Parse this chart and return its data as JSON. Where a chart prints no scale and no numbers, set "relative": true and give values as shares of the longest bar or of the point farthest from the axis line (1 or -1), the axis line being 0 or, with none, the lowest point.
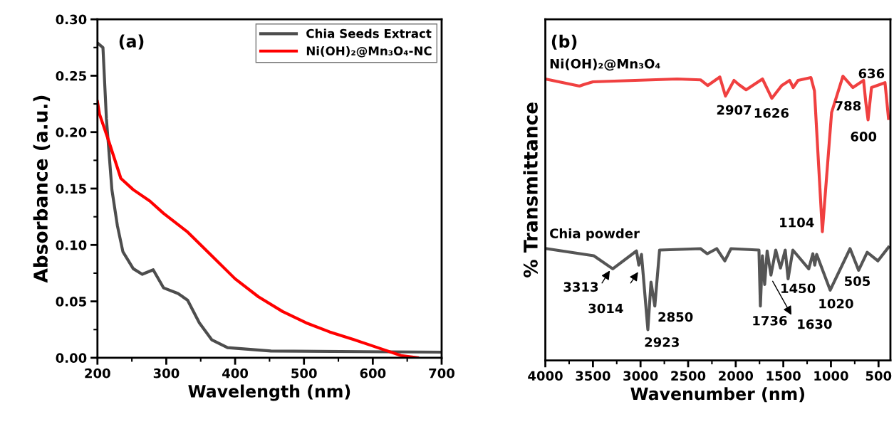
{
  "chart_data": [
    {
      "type": "line",
      "title": "(a)",
      "xlabel": "Wavelength (nm)",
      "ylabel": "Absorbance (a.u.)",
      "xlim": [
        200,
        700
      ],
      "xticks": [
        200,
        300,
        400,
        500,
        600,
        700
      ],
      "ylim": [
        0,
        0.3
      ],
      "yticks": [
        {
          "value": 0,
          "label": "0.00"
        },
        {
          "value": 0.05,
          "label": "0.05"
        },
        {
          "value": 0.1,
          "label": "0.10"
        },
        {
          "value": 0.15,
          "label": "0.15"
        },
        {
          "value": 0.2,
          "label": "0.20"
        },
        {
          "value": 0.25,
          "label": "0.25"
        },
        {
          "value": 0.3,
          "label": "0.30"
        }
      ],
      "legend": "top right",
      "grid": false,
      "series": [
        {
          "name": "Chia Seeds Extract",
          "color": "#4d4d4d",
          "x": [
            200,
            208,
            213,
            221,
            229,
            237,
            252,
            265,
            281,
            296,
            317,
            331,
            348,
            366,
            389,
            452,
            700
          ],
          "values": [
            0.279,
            0.275,
            0.212,
            0.149,
            0.117,
            0.094,
            0.079,
            0.074,
            0.078,
            0.062,
            0.057,
            0.051,
            0.031,
            0.016,
            0.009,
            0.006,
            0.005
          ]
        },
        {
          "name": "Ni(OH)₂@Mn₃O₄-NC",
          "color": "#ff0000",
          "x": [
            200,
            203,
            217,
            234,
            252,
            276,
            296,
            330,
            365,
            400,
            434,
            469,
            503,
            537,
            573,
            607,
            641,
            665
          ],
          "values": [
            0.227,
            0.216,
            0.191,
            0.159,
            0.149,
            0.139,
            0.128,
            0.112,
            0.091,
            0.07,
            0.054,
            0.041,
            0.031,
            0.023,
            0.016,
            0.009,
            0.002,
            0.0
          ]
        }
      ]
    },
    {
      "type": "line",
      "title": "(b)",
      "xlabel": "Wavenumber (nm)",
      "ylabel": "% Transmittance",
      "relative": true,
      "tick_labels": "x",
      "xlim": [
        4000,
        375
      ],
      "xticks": [
        4000,
        3500,
        3000,
        2500,
        2000,
        1500,
        1000,
        500
      ],
      "grid": false,
      "series": [
        {
          "name": "Ni(OH)₂@Mn₃O₄",
          "color": "#f04040",
          "x": [
            4000,
            3641,
            3600,
            3500,
            2616,
            2370,
            2295,
            2167,
            2108,
            2018,
            1966,
            1891,
            1719,
            1621,
            1517,
            1434,
            1397,
            1345,
            1210,
            1173,
            1090,
            993,
            874,
            769,
            657,
            634,
            610,
            574,
            432,
            395
          ],
          "values": [
            0.99,
            0.965,
            0.97,
            0.98,
            0.99,
            0.987,
            0.967,
            0.997,
            0.93,
            0.985,
            0.97,
            0.952,
            0.99,
            0.922,
            0.967,
            0.985,
            0.96,
            0.985,
            0.995,
            0.948,
            0.453,
            0.872,
            1.0,
            0.96,
            0.985,
            0.909,
            0.846,
            0.96,
            0.977,
            0.851
          ]
        },
        {
          "name": "Chia powder",
          "color": "#555555",
          "x": [
            3985,
            3491,
            3292,
            3043,
            3018,
            2990,
            2923,
            2890,
            2850,
            2800,
            2370,
            2300,
            2200,
            2115,
            2050,
            1756,
            1741,
            1720,
            1696,
            1670,
            1630,
            1580,
            1530,
            1480,
            1450,
            1400,
            1233,
            1190,
            1170,
            1150,
            1008,
            799,
            709,
            619,
            507,
            395
          ],
          "values": [
            0.393,
            0.368,
            0.322,
            0.385,
            0.335,
            0.373,
            0.108,
            0.275,
            0.191,
            0.388,
            0.393,
            0.375,
            0.393,
            0.35,
            0.393,
            0.388,
            0.191,
            0.368,
            0.267,
            0.385,
            0.3,
            0.388,
            0.325,
            0.388,
            0.287,
            0.388,
            0.322,
            0.375,
            0.335,
            0.373,
            0.247,
            0.393,
            0.317,
            0.38,
            0.35,
            0.398
          ]
        }
      ],
      "annotations": [
        "2907",
        "1626",
        "1104",
        "788",
        "636",
        "600",
        "3313",
        "3014",
        "2923",
        "2850",
        "1736",
        "1630",
        "1450",
        "1020",
        "505"
      ]
    }
  ]
}
